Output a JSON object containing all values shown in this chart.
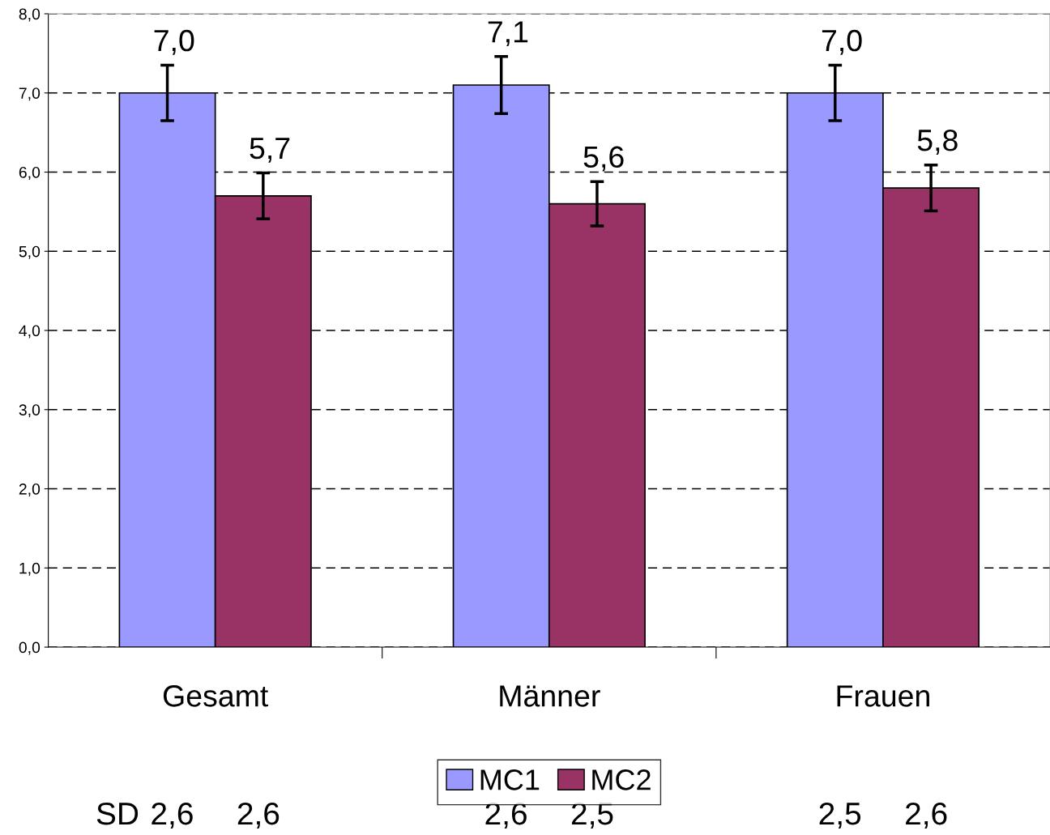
{
  "chart_data": {
    "type": "bar",
    "categories": [
      "Gesamt",
      "Männer",
      "Frauen"
    ],
    "series": [
      {
        "name": "MC1",
        "color": "#9999ff",
        "values": [
          7.0,
          7.1,
          7.0
        ],
        "errors": [
          0.35,
          0.36,
          0.35
        ],
        "value_labels": [
          "7,0",
          "7,1",
          "7,0"
        ]
      },
      {
        "name": "MC2",
        "color": "#993366",
        "values": [
          5.7,
          5.6,
          5.8
        ],
        "errors": [
          0.29,
          0.28,
          0.29
        ],
        "value_labels": [
          "5,7",
          "5,6",
          "5,8"
        ]
      }
    ],
    "ylim": [
      0,
      8
    ],
    "yticks": [
      {
        "value": 0,
        "label": "0,0"
      },
      {
        "value": 1,
        "label": "1,0"
      },
      {
        "value": 2,
        "label": "2,0"
      },
      {
        "value": 3,
        "label": "3,0"
      },
      {
        "value": 4,
        "label": "4,0"
      },
      {
        "value": 5,
        "label": "5,0"
      },
      {
        "value": 6,
        "label": "6,0"
      },
      {
        "value": 7,
        "label": "7,0"
      },
      {
        "value": 8,
        "label": "8,0"
      }
    ],
    "grid": "y",
    "line_style": "dashed",
    "legend": "bottom",
    "annotations": [
      "SD",
      "2,6",
      "2,6",
      "2,6",
      "2,5",
      "2,5",
      "2,6"
    ]
  }
}
